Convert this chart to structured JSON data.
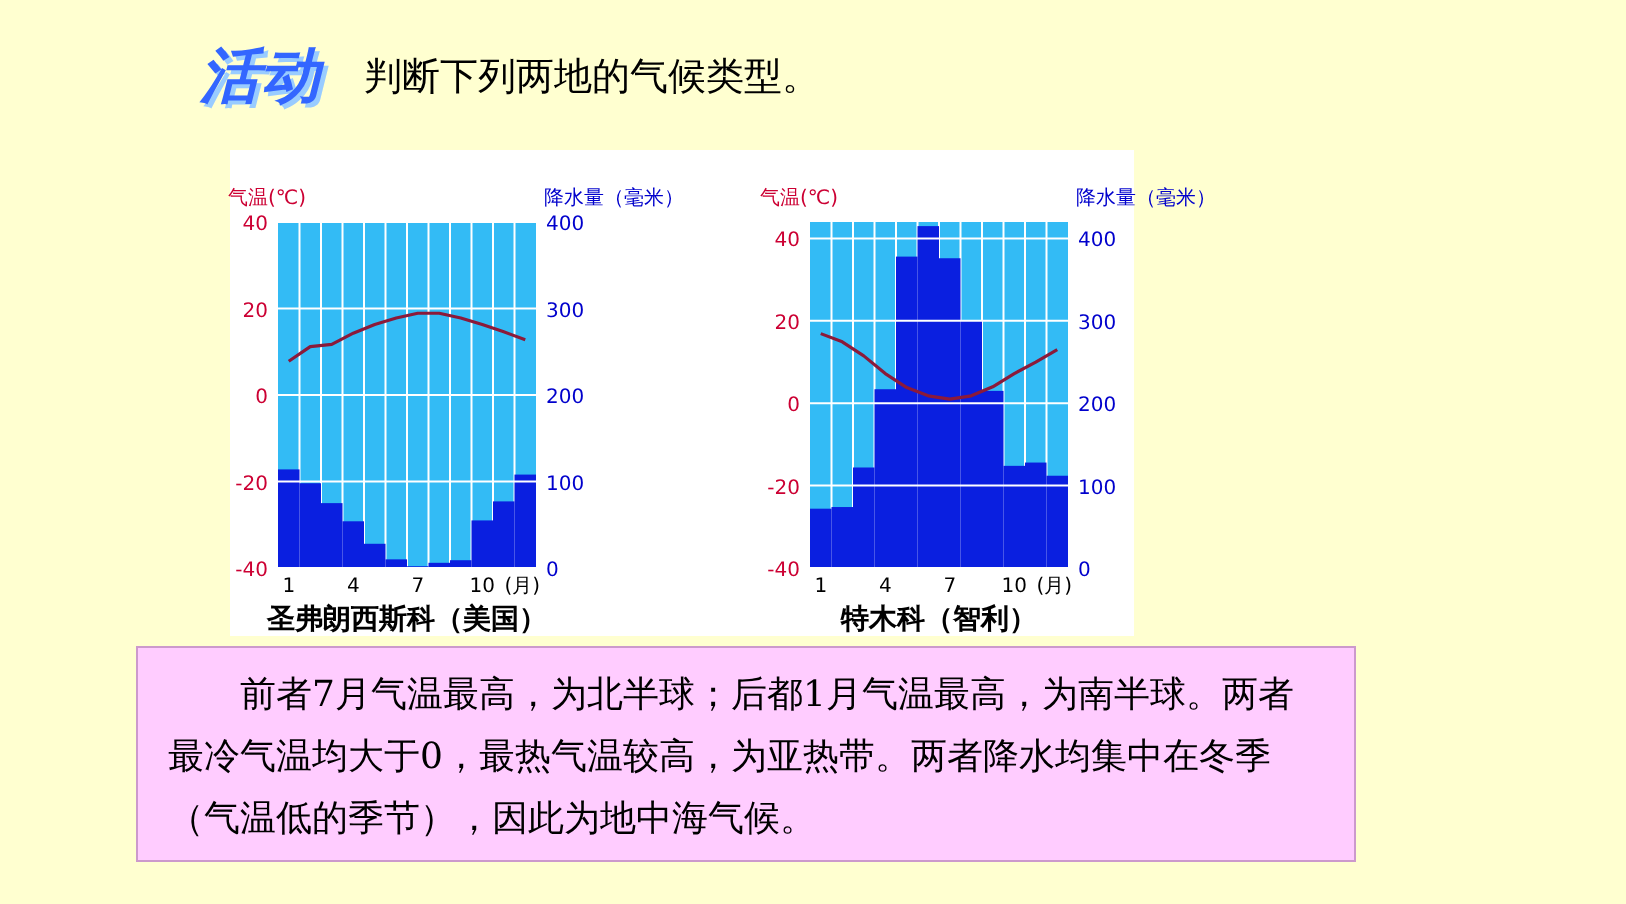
{
  "chart_data": [
    {
      "type": "other",
      "title": "活动",
      "subtitle": "判断下列两地的气候类型。"
    },
    {
      "type": "bar",
      "title": "圣弗朗西斯科（美国）",
      "xlabel": "(月)",
      "ylabel": "气温(℃)",
      "y2label": "降水量（毫米）",
      "categories": [
        "1",
        null,
        null,
        "4",
        null,
        null,
        "7",
        null,
        null,
        "10",
        null,
        null
      ],
      "ylim": [
        -40,
        40
      ],
      "yticks": [
        -40,
        -20,
        0,
        20,
        40
      ],
      "y2lim": [
        0,
        400
      ],
      "y2ticks": [
        0,
        100,
        200,
        300,
        400
      ],
      "grid": true,
      "series": [
        {
          "type": "bar",
          "axis": "y2",
          "color": "#0a1fe0",
          "values": [
            114,
            98,
            75,
            54,
            28,
            10,
            2,
            6,
            9,
            55,
            77,
            108
          ]
        },
        {
          "type": "line",
          "axis": "y",
          "color": "#8b1a3a",
          "values": [
            7.8,
            11.2,
            11.7,
            14.3,
            16.3,
            17.8,
            18.9,
            18.9,
            17.8,
            16.3,
            14.6,
            12.8
          ]
        }
      ]
    },
    {
      "type": "bar",
      "title": "特木科（智利）",
      "xlabel": "(月)",
      "ylabel": "气温(℃)",
      "y2label": "降水量（毫米）",
      "categories": [
        "1",
        null,
        null,
        "4",
        null,
        null,
        "7",
        null,
        null,
        "10",
        null,
        null
      ],
      "ylim": [
        -40,
        44
      ],
      "yticks": [
        -40,
        -20,
        0,
        20,
        40
      ],
      "y2lim": [
        0,
        420
      ],
      "y2ticks": [
        0,
        100,
        200,
        300,
        400
      ],
      "grid": true,
      "series": [
        {
          "type": "bar",
          "axis": "y2",
          "color": "#0a1fe0",
          "values": [
            72,
            74,
            122,
            217,
            378,
            415,
            376,
            301,
            215,
            124,
            128,
            112
          ]
        },
        {
          "type": "line",
          "axis": "y",
          "color": "#8b1a3a",
          "values": [
            16.9,
            14.9,
            11.5,
            7.2,
            3.8,
            1.8,
            1.0,
            1.8,
            4.0,
            7.2,
            10.0,
            13.0
          ]
        }
      ]
    },
    {
      "type": "other",
      "annotations": [
        "前者7月气温最高，为北半球；后都1月气温最高，为南半球。两者最冷气温均大于0，最热气温较高，为亚热带。两者降水均集中在冬季（气温低的季节），因此为地中海气候。"
      ]
    }
  ]
}
